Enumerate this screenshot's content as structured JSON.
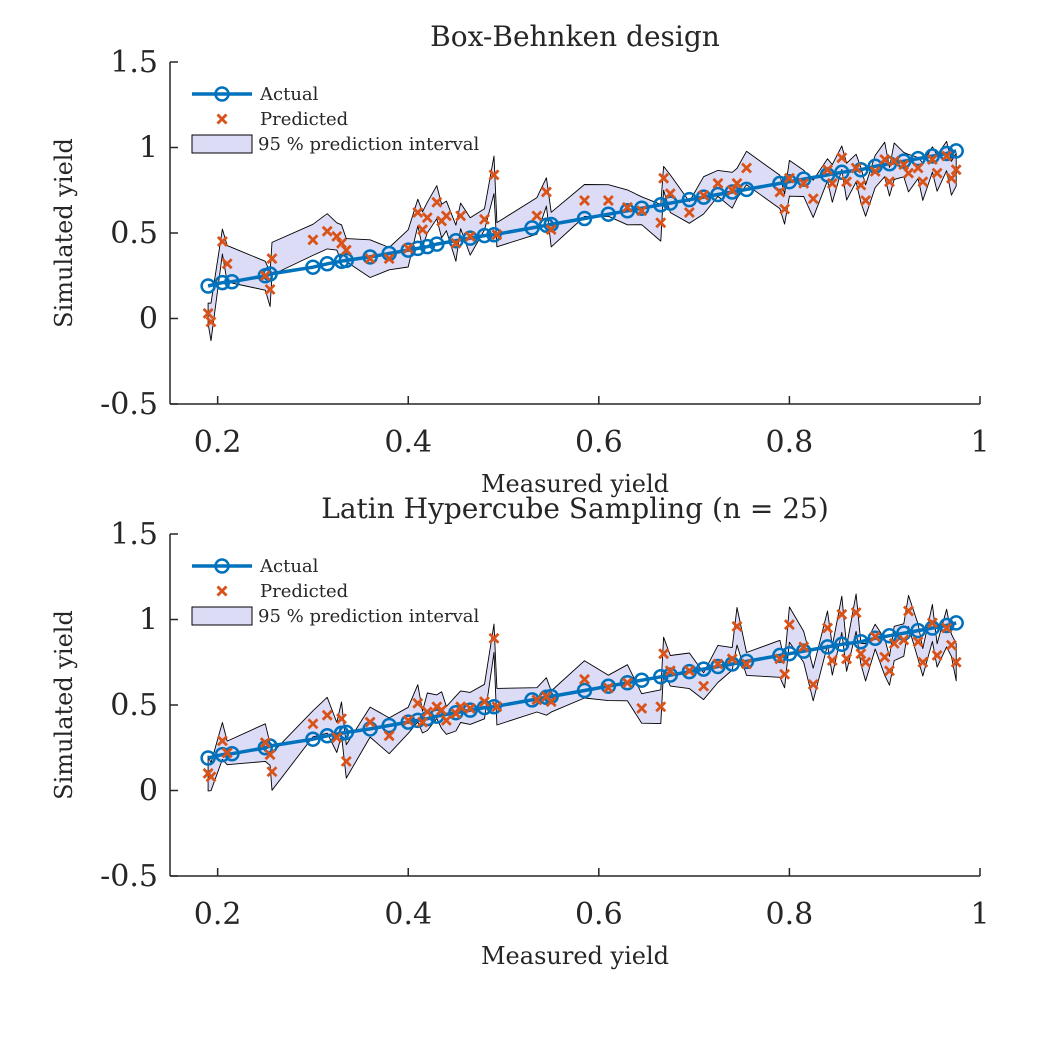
{
  "chart_data": [
    {
      "type": "line",
      "title": "Box-Behnken design",
      "xlabel": "Measured yield",
      "ylabel": "Simulated yield",
      "xlim": [
        0.15,
        1.0
      ],
      "ylim": [
        -0.5,
        1.5
      ],
      "xticks": [
        "0.2",
        "0.4",
        "0.6",
        "0.8",
        "1"
      ],
      "yticks": [
        "-0.5",
        "0",
        "0.5",
        "1",
        "1.5"
      ],
      "grid": false,
      "legend_position": "top-left",
      "colors": {
        "actual": "#0072BD",
        "predicted": "#D95319",
        "interval": "#DCDCF7"
      },
      "legend": [
        "Actual",
        "Predicted",
        "95 % prediction interval"
      ],
      "series": [
        {
          "name": "Actual",
          "x": [
            0.19,
            0.205,
            0.215,
            0.25,
            0.255,
            0.3,
            0.315,
            0.33,
            0.335,
            0.36,
            0.38,
            0.4,
            0.41,
            0.42,
            0.43,
            0.45,
            0.465,
            0.48,
            0.49,
            0.53,
            0.545,
            0.55,
            0.585,
            0.61,
            0.63,
            0.645,
            0.665,
            0.675,
            0.695,
            0.71,
            0.725,
            0.74,
            0.755,
            0.79,
            0.8,
            0.815,
            0.84,
            0.855,
            0.875,
            0.89,
            0.905,
            0.92,
            0.935,
            0.95,
            0.965,
            0.975
          ],
          "y": [
            0.19,
            0.21,
            0.215,
            0.25,
            0.26,
            0.3,
            0.32,
            0.335,
            0.34,
            0.36,
            0.38,
            0.4,
            0.41,
            0.42,
            0.435,
            0.455,
            0.47,
            0.485,
            0.49,
            0.53,
            0.545,
            0.55,
            0.585,
            0.61,
            0.63,
            0.645,
            0.665,
            0.675,
            0.695,
            0.71,
            0.725,
            0.74,
            0.755,
            0.79,
            0.8,
            0.815,
            0.84,
            0.855,
            0.87,
            0.89,
            0.905,
            0.92,
            0.935,
            0.95,
            0.965,
            0.98
          ]
        },
        {
          "name": "Predicted",
          "x": [
            0.19,
            0.193,
            0.205,
            0.21,
            0.25,
            0.255,
            0.257,
            0.3,
            0.315,
            0.325,
            0.33,
            0.335,
            0.36,
            0.38,
            0.4,
            0.41,
            0.415,
            0.42,
            0.43,
            0.435,
            0.44,
            0.45,
            0.455,
            0.465,
            0.48,
            0.49,
            0.493,
            0.535,
            0.545,
            0.55,
            0.585,
            0.61,
            0.63,
            0.645,
            0.665,
            0.668,
            0.675,
            0.695,
            0.71,
            0.725,
            0.74,
            0.745,
            0.755,
            0.79,
            0.795,
            0.8,
            0.815,
            0.825,
            0.84,
            0.845,
            0.855,
            0.86,
            0.87,
            0.875,
            0.88,
            0.89,
            0.9,
            0.905,
            0.91,
            0.92,
            0.925,
            0.935,
            0.94,
            0.95,
            0.955,
            0.965,
            0.97,
            0.975
          ],
          "y": [
            0.03,
            -0.02,
            0.45,
            0.32,
            0.25,
            0.17,
            0.35,
            0.46,
            0.51,
            0.48,
            0.44,
            0.4,
            0.35,
            0.35,
            0.41,
            0.62,
            0.52,
            0.59,
            0.68,
            0.57,
            0.6,
            0.44,
            0.6,
            0.48,
            0.58,
            0.84,
            0.49,
            0.6,
            0.74,
            0.52,
            0.69,
            0.69,
            0.65,
            0.63,
            0.56,
            0.82,
            0.73,
            0.62,
            0.72,
            0.79,
            0.75,
            0.79,
            0.88,
            0.74,
            0.64,
            0.82,
            0.79,
            0.7,
            0.87,
            0.79,
            0.94,
            0.8,
            0.88,
            0.78,
            0.69,
            0.86,
            0.93,
            0.8,
            0.92,
            0.9,
            0.85,
            0.88,
            0.8,
            0.93,
            0.85,
            0.95,
            0.82,
            0.87
          ]
        }
      ]
    },
    {
      "type": "line",
      "title": "Latin Hypercube Sampling (n = 25)",
      "xlabel": "Measured yield",
      "ylabel": "Simulated yield",
      "xlim": [
        0.15,
        1.0
      ],
      "ylim": [
        -0.5,
        1.5
      ],
      "xticks": [
        "0.2",
        "0.4",
        "0.6",
        "0.8",
        "1"
      ],
      "yticks": [
        "-0.5",
        "0",
        "0.5",
        "1",
        "1.5"
      ],
      "grid": false,
      "legend_position": "top-left",
      "colors": {
        "actual": "#0072BD",
        "predicted": "#D95319",
        "interval": "#DCDCF7"
      },
      "legend": [
        "Actual",
        "Predicted",
        "95 % prediction interval"
      ],
      "series": [
        {
          "name": "Actual",
          "x": [
            0.19,
            0.205,
            0.215,
            0.25,
            0.255,
            0.3,
            0.315,
            0.33,
            0.335,
            0.36,
            0.38,
            0.4,
            0.41,
            0.42,
            0.43,
            0.45,
            0.465,
            0.48,
            0.49,
            0.53,
            0.545,
            0.55,
            0.585,
            0.61,
            0.63,
            0.645,
            0.665,
            0.675,
            0.695,
            0.71,
            0.725,
            0.74,
            0.755,
            0.79,
            0.8,
            0.815,
            0.84,
            0.855,
            0.875,
            0.89,
            0.905,
            0.92,
            0.935,
            0.95,
            0.965,
            0.975
          ],
          "y": [
            0.19,
            0.21,
            0.215,
            0.25,
            0.26,
            0.3,
            0.32,
            0.335,
            0.34,
            0.36,
            0.38,
            0.4,
            0.41,
            0.42,
            0.435,
            0.455,
            0.47,
            0.485,
            0.49,
            0.53,
            0.545,
            0.55,
            0.585,
            0.61,
            0.63,
            0.645,
            0.665,
            0.675,
            0.695,
            0.71,
            0.725,
            0.74,
            0.755,
            0.79,
            0.8,
            0.815,
            0.84,
            0.855,
            0.87,
            0.89,
            0.905,
            0.92,
            0.935,
            0.95,
            0.965,
            0.98
          ]
        },
        {
          "name": "Predicted",
          "x": [
            0.19,
            0.193,
            0.205,
            0.21,
            0.25,
            0.255,
            0.257,
            0.3,
            0.315,
            0.325,
            0.33,
            0.335,
            0.36,
            0.38,
            0.4,
            0.41,
            0.415,
            0.42,
            0.43,
            0.435,
            0.44,
            0.45,
            0.455,
            0.465,
            0.48,
            0.49,
            0.493,
            0.535,
            0.545,
            0.55,
            0.585,
            0.61,
            0.63,
            0.645,
            0.665,
            0.668,
            0.675,
            0.695,
            0.71,
            0.725,
            0.74,
            0.745,
            0.755,
            0.79,
            0.795,
            0.8,
            0.815,
            0.825,
            0.84,
            0.845,
            0.855,
            0.86,
            0.87,
            0.875,
            0.88,
            0.89,
            0.9,
            0.905,
            0.91,
            0.92,
            0.925,
            0.935,
            0.94,
            0.95,
            0.955,
            0.965,
            0.97,
            0.975
          ],
          "y": [
            0.1,
            0.08,
            0.29,
            0.22,
            0.28,
            0.21,
            0.11,
            0.39,
            0.44,
            0.31,
            0.42,
            0.17,
            0.4,
            0.32,
            0.41,
            0.51,
            0.4,
            0.46,
            0.49,
            0.47,
            0.41,
            0.45,
            0.49,
            0.48,
            0.52,
            0.89,
            0.49,
            0.53,
            0.55,
            0.52,
            0.65,
            0.6,
            0.63,
            0.48,
            0.49,
            0.8,
            0.7,
            0.7,
            0.61,
            0.74,
            0.77,
            0.96,
            0.74,
            0.77,
            0.68,
            0.97,
            0.84,
            0.62,
            0.95,
            0.76,
            1.03,
            0.77,
            1.04,
            0.8,
            0.75,
            0.9,
            0.78,
            0.7,
            0.86,
            0.88,
            1.05,
            0.87,
            0.75,
            0.98,
            0.79,
            0.95,
            0.85,
            0.75
          ]
        }
      ]
    }
  ]
}
